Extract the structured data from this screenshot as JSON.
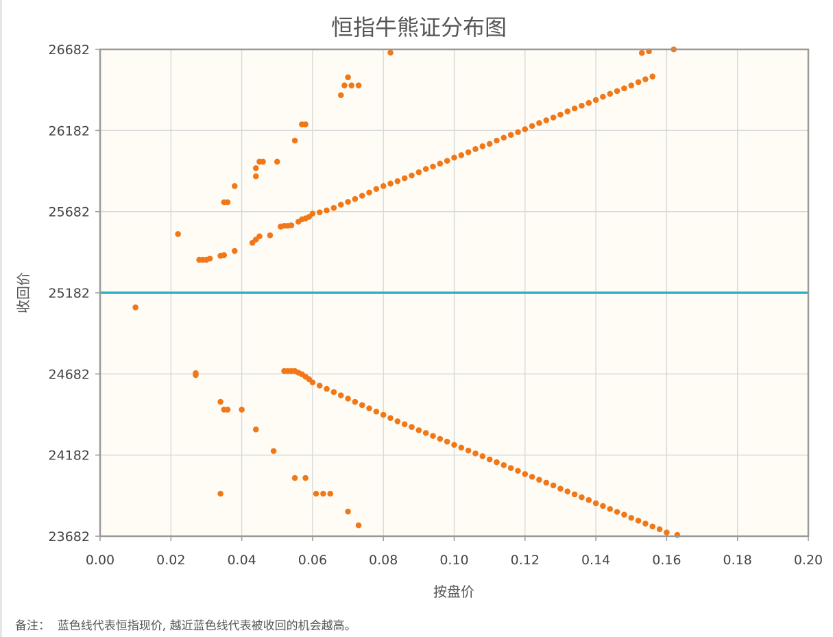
{
  "chart_data": {
    "type": "scatter",
    "title": "恒指牛熊证分布图",
    "xlabel": "按盘价",
    "ylabel": "收回价",
    "xlim": [
      0,
      0.2
    ],
    "ylim": [
      23682,
      26682
    ],
    "x_ticks": [
      "0.00",
      "0.02",
      "0.04",
      "0.06",
      "0.08",
      "0.10",
      "0.12",
      "0.14",
      "0.16",
      "0.18",
      "0.20"
    ],
    "y_ticks": [
      "23682",
      "24182",
      "24682",
      "25182",
      "25682",
      "26182",
      "26682"
    ],
    "grid": true,
    "reference_line": {
      "y": 25182,
      "color": "#2bafc9"
    },
    "colors": {
      "points": "#f07818",
      "plot_bg": "#fefcf5",
      "grid": "#d6d6d6",
      "axis": "#999999"
    },
    "series": [
      {
        "values": [
          [
            0.01,
            25092
          ],
          [
            0.022,
            25544
          ],
          [
            0.027,
            24687
          ],
          [
            0.027,
            24675
          ],
          [
            0.034,
            24510
          ],
          [
            0.035,
            24462
          ],
          [
            0.036,
            24462
          ],
          [
            0.04,
            24462
          ],
          [
            0.044,
            24340
          ],
          [
            0.049,
            24207
          ],
          [
            0.055,
            24041
          ],
          [
            0.058,
            24041
          ],
          [
            0.034,
            23944
          ],
          [
            0.061,
            23944
          ],
          [
            0.063,
            23944
          ],
          [
            0.065,
            23944
          ],
          [
            0.07,
            23834
          ],
          [
            0.073,
            23749
          ],
          [
            0.028,
            25385
          ],
          [
            0.029,
            25385
          ],
          [
            0.03,
            25385
          ],
          [
            0.031,
            25393
          ],
          [
            0.034,
            25410
          ],
          [
            0.035,
            25414
          ],
          [
            0.038,
            25440
          ],
          [
            0.043,
            25490
          ],
          [
            0.044,
            25510
          ],
          [
            0.045,
            25530
          ],
          [
            0.048,
            25536
          ],
          [
            0.051,
            25590
          ],
          [
            0.052,
            25595
          ],
          [
            0.053,
            25595
          ],
          [
            0.054,
            25598
          ],
          [
            0.056,
            25620
          ],
          [
            0.057,
            25635
          ],
          [
            0.058,
            25640
          ],
          [
            0.059,
            25650
          ],
          [
            0.06,
            25670
          ],
          [
            0.062,
            25678
          ],
          [
            0.064,
            25690
          ],
          [
            0.066,
            25705
          ],
          [
            0.068,
            25725
          ],
          [
            0.07,
            25742
          ],
          [
            0.072,
            25760
          ],
          [
            0.074,
            25780
          ],
          [
            0.076,
            25800
          ],
          [
            0.078,
            25822
          ],
          [
            0.08,
            25840
          ],
          [
            0.082,
            25855
          ],
          [
            0.084,
            25870
          ],
          [
            0.086,
            25888
          ],
          [
            0.088,
            25905
          ],
          [
            0.09,
            25925
          ],
          [
            0.092,
            25945
          ],
          [
            0.094,
            25960
          ],
          [
            0.096,
            25978
          ],
          [
            0.098,
            25995
          ],
          [
            0.1,
            26015
          ],
          [
            0.102,
            26030
          ],
          [
            0.104,
            26048
          ],
          [
            0.106,
            26068
          ],
          [
            0.108,
            26085
          ],
          [
            0.11,
            26100
          ],
          [
            0.112,
            26120
          ],
          [
            0.114,
            26138
          ],
          [
            0.116,
            26155
          ],
          [
            0.118,
            26172
          ],
          [
            0.12,
            26190
          ],
          [
            0.122,
            26210
          ],
          [
            0.124,
            26228
          ],
          [
            0.126,
            26245
          ],
          [
            0.128,
            26262
          ],
          [
            0.13,
            26280
          ],
          [
            0.132,
            26300
          ],
          [
            0.134,
            26318
          ],
          [
            0.136,
            26335
          ],
          [
            0.138,
            26352
          ],
          [
            0.14,
            26370
          ],
          [
            0.142,
            26390
          ],
          [
            0.144,
            26408
          ],
          [
            0.146,
            26425
          ],
          [
            0.148,
            26442
          ],
          [
            0.15,
            26460
          ],
          [
            0.152,
            26480
          ],
          [
            0.154,
            26498
          ],
          [
            0.156,
            26515
          ],
          [
            0.162,
            26682
          ],
          [
            0.035,
            25740
          ],
          [
            0.036,
            25740
          ],
          [
            0.038,
            25840
          ],
          [
            0.044,
            25900
          ],
          [
            0.044,
            25950
          ],
          [
            0.045,
            25990
          ],
          [
            0.046,
            25990
          ],
          [
            0.05,
            25990
          ],
          [
            0.055,
            26120
          ],
          [
            0.057,
            26220
          ],
          [
            0.058,
            26220
          ],
          [
            0.068,
            26400
          ],
          [
            0.069,
            26460
          ],
          [
            0.07,
            26510
          ],
          [
            0.071,
            26460
          ],
          [
            0.073,
            26460
          ],
          [
            0.082,
            26662
          ],
          [
            0.153,
            26660
          ],
          [
            0.155,
            26670
          ],
          [
            0.052,
            24700
          ],
          [
            0.053,
            24700
          ],
          [
            0.054,
            24700
          ],
          [
            0.055,
            24700
          ],
          [
            0.056,
            24690
          ],
          [
            0.057,
            24680
          ],
          [
            0.058,
            24665
          ],
          [
            0.059,
            24650
          ],
          [
            0.06,
            24630
          ],
          [
            0.062,
            24610
          ],
          [
            0.064,
            24590
          ],
          [
            0.066,
            24570
          ],
          [
            0.068,
            24550
          ],
          [
            0.07,
            24530
          ],
          [
            0.072,
            24510
          ],
          [
            0.074,
            24490
          ],
          [
            0.076,
            24470
          ],
          [
            0.078,
            24450
          ],
          [
            0.08,
            24430
          ],
          [
            0.082,
            24410
          ],
          [
            0.084,
            24390
          ],
          [
            0.086,
            24372
          ],
          [
            0.088,
            24355
          ],
          [
            0.09,
            24335
          ],
          [
            0.092,
            24318
          ],
          [
            0.094,
            24300
          ],
          [
            0.096,
            24282
          ],
          [
            0.098,
            24265
          ],
          [
            0.1,
            24245
          ],
          [
            0.102,
            24228
          ],
          [
            0.104,
            24210
          ],
          [
            0.106,
            24192
          ],
          [
            0.108,
            24175
          ],
          [
            0.11,
            24155
          ],
          [
            0.112,
            24138
          ],
          [
            0.114,
            24120
          ],
          [
            0.116,
            24102
          ],
          [
            0.118,
            24085
          ],
          [
            0.12,
            24065
          ],
          [
            0.122,
            24048
          ],
          [
            0.124,
            24030
          ],
          [
            0.126,
            24012
          ],
          [
            0.128,
            23995
          ],
          [
            0.13,
            23975
          ],
          [
            0.132,
            23958
          ],
          [
            0.134,
            23940
          ],
          [
            0.136,
            23922
          ],
          [
            0.138,
            23905
          ],
          [
            0.14,
            23885
          ],
          [
            0.142,
            23868
          ],
          [
            0.144,
            23850
          ],
          [
            0.146,
            23832
          ],
          [
            0.148,
            23815
          ],
          [
            0.15,
            23795
          ],
          [
            0.152,
            23778
          ],
          [
            0.154,
            23760
          ],
          [
            0.156,
            23742
          ],
          [
            0.158,
            23725
          ],
          [
            0.16,
            23705
          ],
          [
            0.163,
            23690
          ]
        ]
      }
    ]
  },
  "note": {
    "label": "备注：",
    "text": "蓝色线代表恒指现价, 越近蓝色线代表被收回的机会越高。"
  }
}
